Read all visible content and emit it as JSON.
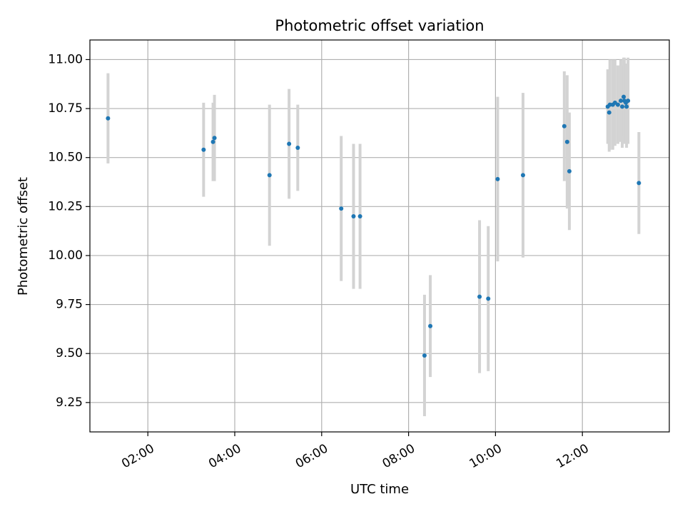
{
  "chart_data": {
    "type": "scatter",
    "title": "Photometric offset variation",
    "xlabel": "UTC time",
    "ylabel": "Photometric offset",
    "xlim": [
      "00:40",
      "14:00"
    ],
    "ylim": [
      9.1,
      11.1
    ],
    "x_ticks": [
      "02:00",
      "04:00",
      "06:00",
      "08:00",
      "10:00",
      "12:00"
    ],
    "y_ticks": [
      "9.25",
      "9.50",
      "9.75",
      "10.00",
      "10.25",
      "10.50",
      "10.75",
      "11.00"
    ],
    "grid": true,
    "colors": {
      "point": "#1f77b4",
      "errorbar": "#d3d3d3",
      "grid": "#b0b0b0"
    },
    "series": [
      {
        "points": [
          {
            "x": "01:05",
            "y": 10.7,
            "err": 0.23
          },
          {
            "x": "03:17",
            "y": 10.54,
            "err": 0.24
          },
          {
            "x": "03:30",
            "y": 10.58,
            "err": 0.2
          },
          {
            "x": "03:32",
            "y": 10.6,
            "err": 0.22
          },
          {
            "x": "04:48",
            "y": 10.41,
            "err": 0.36
          },
          {
            "x": "05:15",
            "y": 10.57,
            "err": 0.28
          },
          {
            "x": "05:27",
            "y": 10.55,
            "err": 0.22
          },
          {
            "x": "06:27",
            "y": 10.24,
            "err": 0.37
          },
          {
            "x": "06:44",
            "y": 10.2,
            "err": 0.37
          },
          {
            "x": "06:53",
            "y": 10.2,
            "err": 0.37
          },
          {
            "x": "08:22",
            "y": 9.49,
            "err": 0.31
          },
          {
            "x": "08:30",
            "y": 9.64,
            "err": 0.26
          },
          {
            "x": "09:38",
            "y": 9.79,
            "err": 0.39
          },
          {
            "x": "09:50",
            "y": 9.78,
            "err": 0.37
          },
          {
            "x": "10:03",
            "y": 10.39,
            "err": 0.42
          },
          {
            "x": "10:38",
            "y": 10.41,
            "err": 0.42
          },
          {
            "x": "11:35",
            "y": 10.66,
            "err": 0.28
          },
          {
            "x": "11:39",
            "y": 10.58,
            "err": 0.34
          },
          {
            "x": "11:42",
            "y": 10.43,
            "err": 0.3
          },
          {
            "x": "12:35",
            "y": 10.76,
            "err": 0.19
          },
          {
            "x": "12:37",
            "y": 10.73,
            "err": 0.2
          },
          {
            "x": "12:38",
            "y": 10.77,
            "err": 0.23
          },
          {
            "x": "12:42",
            "y": 10.77,
            "err": 0.23
          },
          {
            "x": "12:45",
            "y": 10.78,
            "err": 0.22
          },
          {
            "x": "12:49",
            "y": 10.77,
            "err": 0.2
          },
          {
            "x": "12:53",
            "y": 10.79,
            "err": 0.21
          },
          {
            "x": "12:55",
            "y": 10.76,
            "err": 0.21
          },
          {
            "x": "12:57",
            "y": 10.81,
            "err": 0.2
          },
          {
            "x": "12:58",
            "y": 10.79,
            "err": 0.22
          },
          {
            "x": "13:00",
            "y": 10.78,
            "err": 0.2
          },
          {
            "x": "13:01",
            "y": 10.76,
            "err": 0.21
          },
          {
            "x": "13:03",
            "y": 10.79,
            "err": 0.22
          },
          {
            "x": "13:18",
            "y": 10.37,
            "err": 0.26
          }
        ]
      }
    ]
  }
}
